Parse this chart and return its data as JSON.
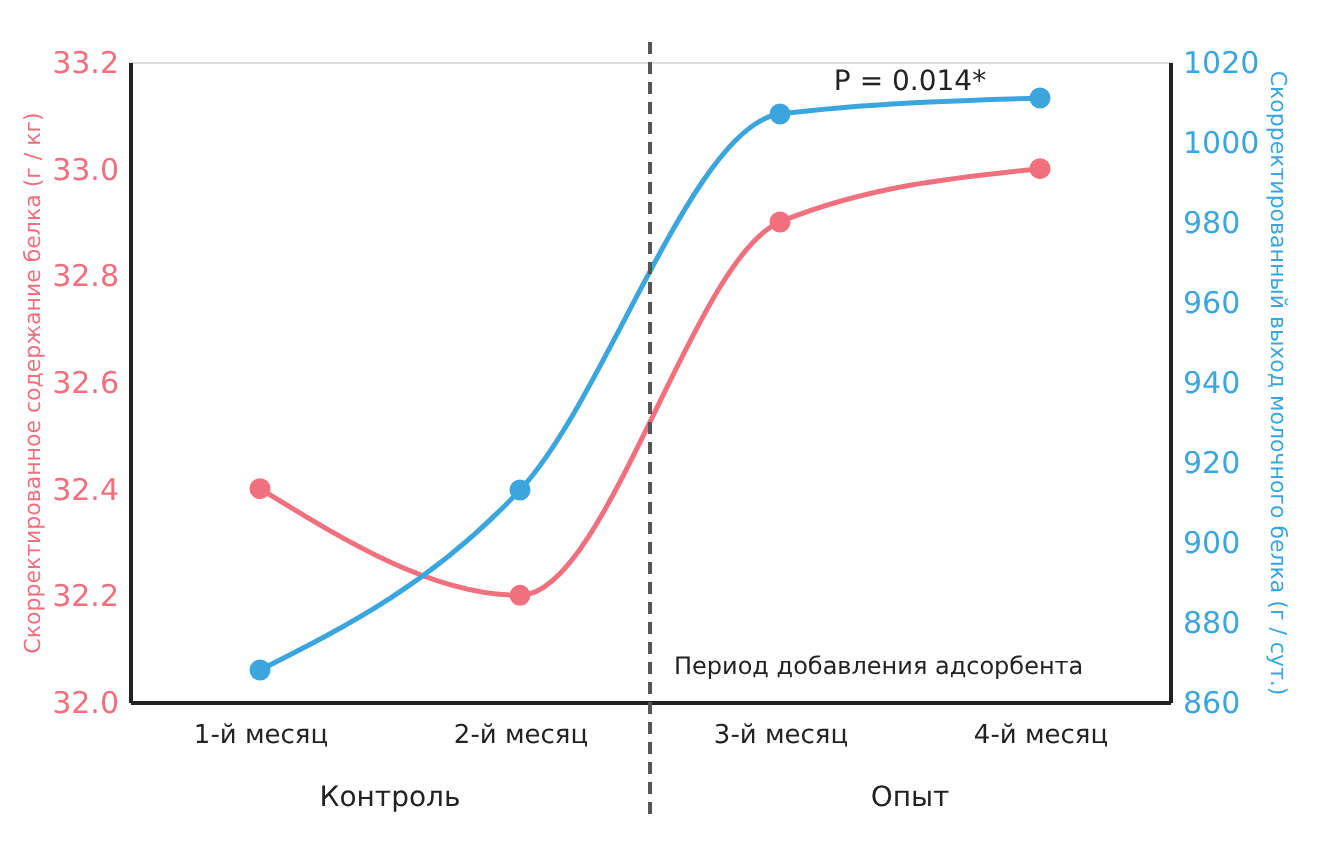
{
  "chart_data": {
    "type": "line",
    "x": [
      1,
      2,
      3,
      4
    ],
    "xlim": [
      0.5,
      4.5
    ],
    "xticks": [
      {
        "value": 1,
        "label": "1-й месяц"
      },
      {
        "value": 2,
        "label": "2-й месяц"
      },
      {
        "value": 3,
        "label": "3-й месяц"
      },
      {
        "value": 4,
        "label": "4-й месяц"
      }
    ],
    "ylabel": "Скорректированное содержание белка (г / кг)",
    "y2label": "Скорректированный выход молочного белка (г / сут.)",
    "ylim": [
      32.0,
      33.2
    ],
    "yticks": [
      {
        "value": 32.0,
        "label": "32.0"
      },
      {
        "value": 32.2,
        "label": "32.2"
      },
      {
        "value": 32.4,
        "label": "32.4"
      },
      {
        "value": 32.6,
        "label": "32.6"
      },
      {
        "value": 32.8,
        "label": "32.8"
      },
      {
        "value": 33.0,
        "label": "33.0"
      },
      {
        "value": 33.2,
        "label": "33.2"
      }
    ],
    "y2lim": [
      860,
      1020
    ],
    "y2ticks": [
      860,
      880,
      900,
      920,
      940,
      960,
      980,
      1000,
      1020
    ],
    "series": [
      {
        "color": "#f0707e",
        "values": [
          32.4,
          32.2,
          32.9,
          33.0
        ],
        "axis": "y"
      },
      {
        "color": "#3aa6dd",
        "values": [
          868,
          913,
          1007,
          1011
        ],
        "axis": "y2"
      }
    ],
    "ref_lines": [
      {
        "axis": "x",
        "value": 2.5,
        "label": "Период добавления адсорбента",
        "color": "#555555",
        "line_style": "dashed"
      }
    ],
    "annotations": [
      "P = 0.014*",
      "Контроль",
      "Опыт"
    ],
    "marker": "circle",
    "grid": false
  }
}
